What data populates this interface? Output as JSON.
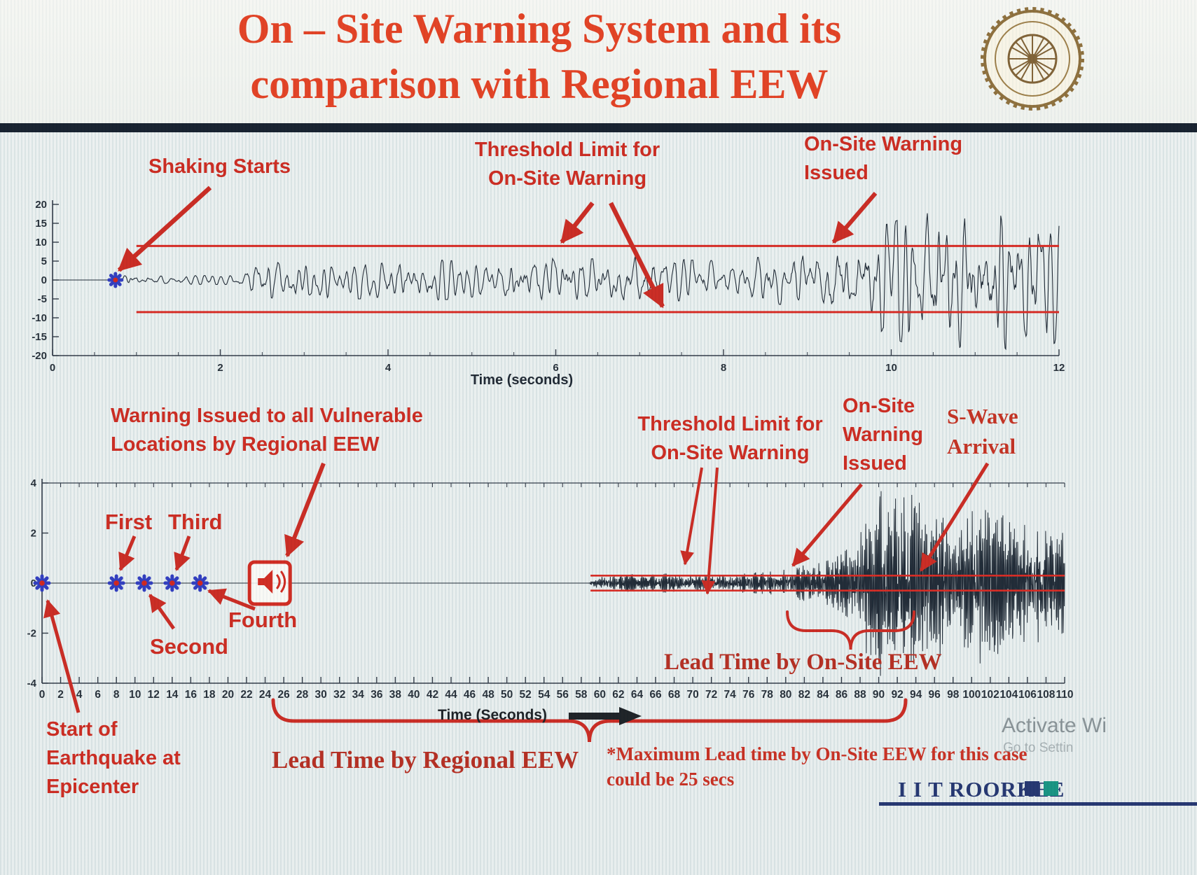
{
  "slide": {
    "title_line1": "On – Site Warning System and its",
    "title_line2": "comparison with Regional EEW",
    "footer": "I I T ROORKEE",
    "watermark_line1": "Activate Wi",
    "watermark_line2": "Go to Settin"
  },
  "colors": {
    "title_red": "#e23a1b",
    "annotation_red": "#ca2318",
    "dark_red_serif": "#b22619",
    "threshold_red": "#d6231b",
    "waveform": "#18222e",
    "marker_blue": "#2936bd",
    "marker_center_red": "#d01f15",
    "navy": "#1c2e6b",
    "teal": "#0f8f7d",
    "divider": "#0e1826"
  },
  "annotations_top": {
    "shaking_starts": "Shaking Starts",
    "threshold_l1": "Threshold Limit for",
    "threshold_l2": "On-Site Warning",
    "issued_l1": "On-Site Warning",
    "issued_l2": "Issued"
  },
  "annotations_bottom": {
    "regional_l1": "Warning Issued to all Vulnerable",
    "regional_l2": "Locations by Regional EEW",
    "threshold_l1": "Threshold Limit for",
    "threshold_l2": "On-Site Warning",
    "onsite_l1": "On-Site",
    "onsite_l2": "Warning",
    "onsite_l3": "Issued",
    "swave_l1": "S-Wave",
    "swave_l2": "Arrival",
    "lead_onsite": "Lead Time by On-Site EEW",
    "start_l1": "Start of",
    "start_l2": "Earthquake at",
    "start_l3": "Epicenter",
    "lead_regional": "Lead Time by Regional EEW",
    "maxlead_l1": "*Maximum Lead time by On-Site EEW for this case",
    "maxlead_l2": "could be 25 secs"
  },
  "chart_data": [
    {
      "id": "onsite-record",
      "type": "line",
      "title": "",
      "xlabel": "Time (seconds)",
      "ylabel": "",
      "xlim": [
        0,
        12
      ],
      "xticks": [
        0,
        2,
        4,
        6,
        8,
        10,
        12
      ],
      "ylim": [
        -20,
        20
      ],
      "yticks": [
        20,
        15,
        10,
        5,
        0,
        -5,
        -10,
        -15,
        -20
      ],
      "grid": false,
      "threshold": {
        "upper": 9,
        "lower": -8.5,
        "x_start": 1,
        "label": "Threshold Limit for On-Site Warning"
      },
      "events": {
        "shaking_starts_x": 0.75,
        "onsite_warning_issued_x": 9.2
      },
      "envelope": [
        [
          0,
          0
        ],
        [
          0.72,
          0
        ],
        [
          0.78,
          1.6
        ],
        [
          1.2,
          0.9
        ],
        [
          2.2,
          1.1
        ],
        [
          2.45,
          4.5
        ],
        [
          2.8,
          5.0
        ],
        [
          3.1,
          3.6
        ],
        [
          3.5,
          4.6
        ],
        [
          4.0,
          3.8
        ],
        [
          4.4,
          4.8
        ],
        [
          5.0,
          4.2
        ],
        [
          5.5,
          5.4
        ],
        [
          6.0,
          5.8
        ],
        [
          6.4,
          4.8
        ],
        [
          6.8,
          5.6
        ],
        [
          7.2,
          5.2
        ],
        [
          7.6,
          4.6
        ],
        [
          8.0,
          4.4
        ],
        [
          8.4,
          5.2
        ],
        [
          8.8,
          5.8
        ],
        [
          9.1,
          6.6
        ],
        [
          9.4,
          9.0
        ],
        [
          9.7,
          12.0
        ],
        [
          10.0,
          13.0
        ],
        [
          10.3,
          16.0
        ],
        [
          10.6,
          14.5
        ],
        [
          10.9,
          16.0
        ],
        [
          11.2,
          17.0
        ],
        [
          11.5,
          15.0
        ],
        [
          11.8,
          16.0
        ],
        [
          12.0,
          14.0
        ]
      ],
      "noise": {
        "seed": 11,
        "samples": 1400,
        "omega": 0.5,
        "damp": 0.9
      }
    },
    {
      "id": "regional-record",
      "type": "line",
      "title": "",
      "xlabel": "Time (Seconds)",
      "ylabel": "",
      "xlim": [
        0,
        110
      ],
      "xticks": [
        0,
        2,
        4,
        6,
        8,
        10,
        12,
        14,
        16,
        18,
        20,
        22,
        24,
        26,
        28,
        30,
        32,
        34,
        36,
        38,
        40,
        42,
        44,
        46,
        48,
        50,
        52,
        54,
        56,
        58,
        60,
        62,
        64,
        66,
        68,
        70,
        72,
        74,
        76,
        78,
        80,
        82,
        84,
        86,
        88,
        90,
        92,
        94,
        96,
        98,
        100,
        102,
        104,
        106,
        108,
        110
      ],
      "ylim": [
        -4,
        4
      ],
      "yticks": [
        4,
        2,
        0,
        -2,
        -4
      ],
      "grid": false,
      "threshold": {
        "upper": 0.3,
        "lower": -0.3,
        "x_start": 59,
        "label": "Threshold Limit for On-Site Warning"
      },
      "events": {
        "epicenter_x": 0,
        "regional_warnings": [
          {
            "label": "First",
            "x": 8
          },
          {
            "label": "Second",
            "x": 11
          },
          {
            "label": "Third",
            "x": 14
          },
          {
            "label": "Fourth",
            "x": 17
          }
        ],
        "regional_warning_issued_x": 24.5,
        "p_wave_arrival_x": 59.5,
        "onsite_warning_issued_x": 80,
        "s_wave_arrival_x": 92.5,
        "lead_time_regional_span": [
          24.5,
          93
        ],
        "lead_time_onsite_span": [
          80,
          93.5
        ],
        "max_lead_time_note": "Maximum Lead time by On-Site EEW for this case could be 25 secs"
      },
      "envelope": [
        [
          0,
          0
        ],
        [
          58.8,
          0
        ],
        [
          59.5,
          0.18
        ],
        [
          61,
          0.25
        ],
        [
          63,
          0.3
        ],
        [
          65,
          0.28
        ],
        [
          67,
          0.33
        ],
        [
          69,
          0.3
        ],
        [
          71,
          0.28
        ],
        [
          73,
          0.3
        ],
        [
          75,
          0.32
        ],
        [
          77,
          0.36
        ],
        [
          79,
          0.42
        ],
        [
          80,
          0.5
        ],
        [
          81,
          0.55
        ],
        [
          82,
          0.62
        ],
        [
          83,
          0.66
        ],
        [
          84,
          0.72
        ],
        [
          85,
          0.85
        ],
        [
          86,
          1.0
        ],
        [
          87,
          1.3
        ],
        [
          88,
          1.9
        ],
        [
          89,
          2.7
        ],
        [
          90,
          3.3
        ],
        [
          91,
          2.9
        ],
        [
          92,
          3.1
        ],
        [
          93,
          3.4
        ],
        [
          94,
          2.8
        ],
        [
          95,
          3.2
        ],
        [
          96,
          2.7
        ],
        [
          97,
          3.0
        ],
        [
          98,
          2.5
        ],
        [
          99,
          2.8
        ],
        [
          100,
          2.6
        ],
        [
          101,
          2.9
        ],
        [
          102,
          2.3
        ],
        [
          103,
          2.5
        ],
        [
          104,
          2.1
        ],
        [
          105,
          2.3
        ],
        [
          106,
          1.9
        ],
        [
          107,
          2.1
        ],
        [
          108,
          1.8
        ],
        [
          109,
          1.9
        ],
        [
          110,
          1.7
        ]
      ],
      "noise": {
        "seed": 29,
        "samples": 3400,
        "omega": 1.6,
        "damp": 0.85
      }
    }
  ]
}
